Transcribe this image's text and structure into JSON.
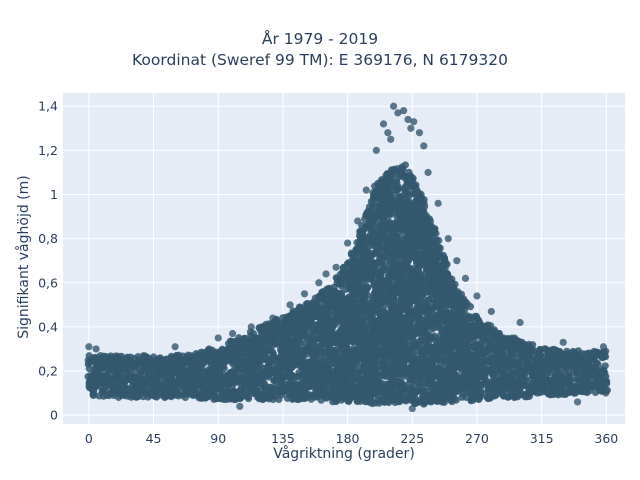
{
  "chart_data": {
    "type": "scatter",
    "title": "År 1979 - 2019",
    "subtitle": "Koordinat (Sweref 99 TM): E 369176, N 6179320",
    "xlabel": "Vågriktning (grader)",
    "ylabel": "Signifikant våghöjd (m)",
    "xlim": [
      -18,
      373
    ],
    "ylim": [
      -0.04,
      1.46
    ],
    "xticks": [
      0,
      45,
      90,
      135,
      180,
      225,
      270,
      315,
      360
    ],
    "xtick_labels": [
      "0",
      "45",
      "90",
      "135",
      "180",
      "225",
      "270",
      "315",
      "360"
    ],
    "yticks": [
      0,
      0.2,
      0.4,
      0.6,
      0.8,
      1,
      1.2,
      1.4
    ],
    "ytick_labels": [
      "0",
      "0,2",
      "0,4",
      "0,6",
      "0,8",
      "1",
      "1,2",
      "1,4"
    ],
    "grid": true,
    "marker_color": "#34586f",
    "background_color": "#e5ecf6",
    "envelope": {
      "description_points": "upper and lower bounds of the dense point cloud, in data units",
      "x": [
        0,
        20,
        45,
        70,
        90,
        110,
        135,
        155,
        170,
        180,
        190,
        200,
        210,
        220,
        230,
        240,
        250,
        260,
        270,
        285,
        300,
        315,
        330,
        345,
        360
      ],
      "upper": [
        0.27,
        0.27,
        0.27,
        0.28,
        0.31,
        0.37,
        0.45,
        0.52,
        0.6,
        0.7,
        0.85,
        1.05,
        1.12,
        1.14,
        1.02,
        0.85,
        0.68,
        0.55,
        0.45,
        0.38,
        0.34,
        0.31,
        0.3,
        0.29,
        0.29
      ],
      "lower": [
        0.09,
        0.08,
        0.08,
        0.08,
        0.07,
        0.07,
        0.07,
        0.07,
        0.06,
        0.06,
        0.06,
        0.05,
        0.05,
        0.05,
        0.05,
        0.05,
        0.06,
        0.06,
        0.07,
        0.08,
        0.08,
        0.09,
        0.09,
        0.1,
        0.1
      ]
    },
    "outliers": [
      {
        "x": 205,
        "y": 1.32
      },
      {
        "x": 208,
        "y": 1.28
      },
      {
        "x": 212,
        "y": 1.4
      },
      {
        "x": 215,
        "y": 1.37
      },
      {
        "x": 219,
        "y": 1.38
      },
      {
        "x": 222,
        "y": 1.34
      },
      {
        "x": 224,
        "y": 1.3
      },
      {
        "x": 226,
        "y": 1.33
      },
      {
        "x": 230,
        "y": 1.28
      },
      {
        "x": 233,
        "y": 1.22
      },
      {
        "x": 210,
        "y": 1.25
      },
      {
        "x": 200,
        "y": 1.2
      },
      {
        "x": 236,
        "y": 1.1
      },
      {
        "x": 243,
        "y": 0.96
      },
      {
        "x": 250,
        "y": 0.8
      },
      {
        "x": 256,
        "y": 0.7
      },
      {
        "x": 262,
        "y": 0.62
      },
      {
        "x": 270,
        "y": 0.54
      },
      {
        "x": 280,
        "y": 0.47
      },
      {
        "x": 193,
        "y": 1.02
      },
      {
        "x": 187,
        "y": 0.88
      },
      {
        "x": 180,
        "y": 0.78
      },
      {
        "x": 172,
        "y": 0.67
      },
      {
        "x": 165,
        "y": 0.64
      },
      {
        "x": 160,
        "y": 0.6
      },
      {
        "x": 150,
        "y": 0.55
      },
      {
        "x": 140,
        "y": 0.5
      },
      {
        "x": 128,
        "y": 0.44
      },
      {
        "x": 113,
        "y": 0.4
      },
      {
        "x": 100,
        "y": 0.37
      },
      {
        "x": 90,
        "y": 0.35
      },
      {
        "x": 60,
        "y": 0.31
      },
      {
        "x": 0,
        "y": 0.31
      },
      {
        "x": 5,
        "y": 0.3
      },
      {
        "x": 300,
        "y": 0.42
      },
      {
        "x": 330,
        "y": 0.33
      },
      {
        "x": 358,
        "y": 0.31
      },
      {
        "x": 105,
        "y": 0.04
      },
      {
        "x": 225,
        "y": 0.03
      },
      {
        "x": 340,
        "y": 0.06
      }
    ]
  }
}
